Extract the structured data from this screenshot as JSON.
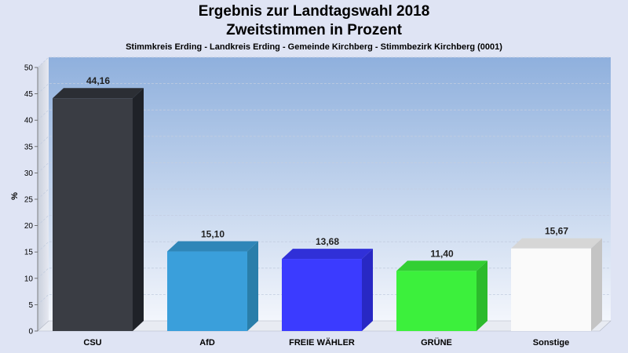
{
  "chart_data": {
    "type": "bar",
    "title": "Ergebnis zur Landtagswahl 2018",
    "subtitle": "Zweitstimmen in Prozent",
    "caption": "Stimmkreis Erding - Landkreis Erding - Gemeinde Kirchberg - Stimmbezirk Kirchberg (0001)",
    "ylabel": "%",
    "xlabel": "",
    "ylim": [
      0,
      50
    ],
    "yticks": [
      0,
      5,
      10,
      15,
      20,
      25,
      30,
      35,
      40,
      45,
      50
    ],
    "grid": true,
    "categories": [
      "CSU",
      "AfD",
      "FREIE WÄHLER",
      "GRÜNE",
      "Sonstige"
    ],
    "values": [
      44.16,
      15.1,
      13.68,
      11.4,
      15.67
    ],
    "labels": [
      "44,16",
      "15,10",
      "13,68",
      "11,40",
      "15,67"
    ],
    "colors": [
      "#3a3d44",
      "#3a9fdb",
      "#3b3bff",
      "#3cf03c",
      "#fafafa"
    ],
    "side_colors": [
      "#1f2228",
      "#2a7eaa",
      "#2828c4",
      "#2cbb2c",
      "#c4c4c4"
    ],
    "top_colors": [
      "#2b2e34",
      "#2f86b8",
      "#3030d8",
      "#33cf33",
      "#d6d6d6"
    ]
  }
}
